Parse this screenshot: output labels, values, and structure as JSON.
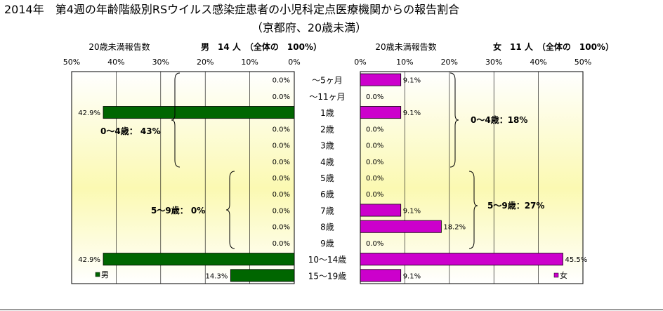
{
  "title": "2014年　第4週の年齢階級別RSウイルス感染症患者の小児科定点医療機関からの報告割合",
  "subtitle": "（京都府、20歳未満）",
  "chart_data": {
    "type": "bar",
    "orientation": "horizontal-butterfly",
    "categories": [
      "～5ヶ月",
      "～11ヶ月",
      "1歳",
      "2歳",
      "3歳",
      "4歳",
      "5歳",
      "6歳",
      "7歳",
      "8歳",
      "9歳",
      "10～14歳",
      "15～19歳"
    ],
    "xlim": [
      0,
      50
    ],
    "ticks": [
      "50%",
      "40%",
      "30%",
      "20%",
      "10%",
      "0%"
    ],
    "ticks_right": [
      "0%",
      "10%",
      "20%",
      "30%",
      "40%",
      "50%"
    ],
    "panels": {
      "male": {
        "axis_title": "20歳未満報告数",
        "header": "男　14 人　（全体の　100%）",
        "legend": "男",
        "color": "#006600",
        "values": [
          0.0,
          0.0,
          42.9,
          0.0,
          0.0,
          0.0,
          0.0,
          0.0,
          0.0,
          0.0,
          0.0,
          42.9,
          14.3
        ],
        "labels": [
          "0.0%",
          "0.0%",
          "42.9%",
          "0.0%",
          "0.0%",
          "0.0%",
          "0.0%",
          "0.0%",
          "0.0%",
          "0.0%",
          "0.0%",
          "42.9%",
          "14.3%"
        ],
        "group_labels": [
          "0～4歳：  43%",
          "5～9歳：  0%"
        ]
      },
      "female": {
        "axis_title": "20歳未満報告数",
        "header": "女　11 人　（全体の　100%）",
        "legend": "女",
        "color": "#cc00cc",
        "values": [
          9.1,
          0.0,
          9.1,
          0.0,
          0.0,
          0.0,
          0.0,
          0.0,
          9.1,
          18.2,
          0.0,
          45.5,
          9.1
        ],
        "labels": [
          "9.1%",
          "0.0%",
          "9.1%",
          "0.0%",
          "0.0%",
          "0.0%",
          "0.0%",
          "0.0%",
          "9.1%",
          "18.2%",
          "0.0%",
          "45.5%",
          "9.1%"
        ],
        "group_labels": [
          "0～4歳：18%",
          "5～9歳：27%"
        ]
      }
    },
    "grid": true
  }
}
